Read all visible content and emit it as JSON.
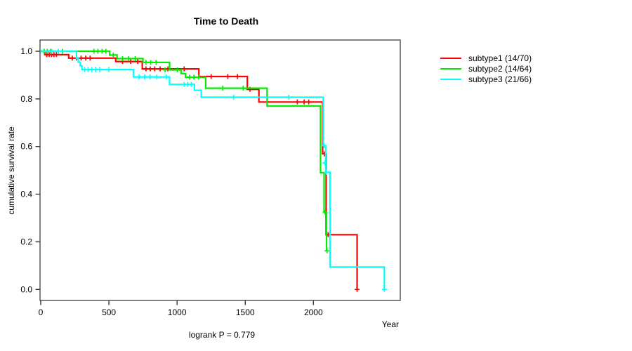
{
  "title": "Time to Death",
  "y_axis_label": "cumulative survival rate",
  "x_axis_label": "Year",
  "footer_label": "logrank P = 0.779",
  "chart_data": {
    "type": "line",
    "style": "kaplan-meier-step",
    "title": "Time to Death",
    "xlabel": "Year",
    "ylabel": "cumulative survival rate",
    "annotation": "logrank P = 0.779",
    "xlim": [
      0,
      2637
    ],
    "ylim": [
      0.0,
      1.0
    ],
    "x_ticks": [
      0,
      500,
      1000,
      1500,
      2000
    ],
    "x_tick_labels": [
      "0",
      "500",
      "1000",
      "1500",
      "2000"
    ],
    "y_ticks": [
      0.0,
      0.2,
      0.4,
      0.6,
      0.8,
      1.0
    ],
    "y_tick_labels": [
      "0.0",
      "0.2",
      "0.4",
      "0.6",
      "0.8",
      "1.0"
    ],
    "grid": false,
    "legend_position": "right-outside",
    "series": [
      {
        "id": "subtype1",
        "label": "subtype1 (14/70)",
        "color": "#ff0000",
        "points": [
          [
            0,
            1.0
          ],
          [
            30,
            0.986
          ],
          [
            205,
            0.971
          ],
          [
            550,
            0.957
          ],
          [
            745,
            0.926
          ],
          [
            1160,
            0.894
          ],
          [
            1515,
            0.84
          ],
          [
            1600,
            0.787
          ],
          [
            2068,
            0.569
          ],
          [
            2093,
            0.23
          ],
          [
            2320,
            0.0
          ]
        ],
        "censors": [
          [
            45,
            0.986
          ],
          [
            62,
            0.986
          ],
          [
            80,
            0.986
          ],
          [
            97,
            0.986
          ],
          [
            115,
            0.986
          ],
          [
            232,
            0.971
          ],
          [
            263,
            0.971
          ],
          [
            296,
            0.971
          ],
          [
            330,
            0.971
          ],
          [
            362,
            0.971
          ],
          [
            600,
            0.957
          ],
          [
            660,
            0.957
          ],
          [
            712,
            0.957
          ],
          [
            772,
            0.926
          ],
          [
            803,
            0.926
          ],
          [
            836,
            0.926
          ],
          [
            876,
            0.926
          ],
          [
            932,
            0.926
          ],
          [
            1052,
            0.926
          ],
          [
            1250,
            0.894
          ],
          [
            1372,
            0.894
          ],
          [
            1443,
            0.894
          ],
          [
            1535,
            0.84
          ],
          [
            1882,
            0.787
          ],
          [
            1932,
            0.787
          ],
          [
            1966,
            0.787
          ],
          [
            2080,
            0.569
          ],
          [
            2108,
            0.23
          ],
          [
            2320,
            0.0
          ]
        ]
      },
      {
        "id": "subtype2",
        "label": "subtype2 (14/64)",
        "color": "#00ee00",
        "points": [
          [
            0,
            1.0
          ],
          [
            505,
            0.984
          ],
          [
            560,
            0.969
          ],
          [
            750,
            0.953
          ],
          [
            945,
            0.922
          ],
          [
            1030,
            0.906
          ],
          [
            1062,
            0.891
          ],
          [
            1210,
            0.845
          ],
          [
            1660,
            0.77
          ],
          [
            2052,
            0.49
          ],
          [
            2078,
            0.324
          ],
          [
            2096,
            0.162
          ]
        ],
        "censors": [
          [
            25,
            1.0
          ],
          [
            48,
            1.0
          ],
          [
            72,
            1.0
          ],
          [
            160,
            1.0
          ],
          [
            390,
            1.0
          ],
          [
            420,
            1.0
          ],
          [
            450,
            1.0
          ],
          [
            478,
            1.0
          ],
          [
            532,
            0.984
          ],
          [
            600,
            0.969
          ],
          [
            645,
            0.969
          ],
          [
            693,
            0.969
          ],
          [
            772,
            0.953
          ],
          [
            806,
            0.953
          ],
          [
            846,
            0.953
          ],
          [
            912,
            0.922
          ],
          [
            1002,
            0.922
          ],
          [
            1092,
            0.891
          ],
          [
            1124,
            0.891
          ],
          [
            1158,
            0.891
          ],
          [
            1335,
            0.845
          ],
          [
            1485,
            0.845
          ],
          [
            2086,
            0.324
          ],
          [
            2100,
            0.162
          ]
        ]
      },
      {
        "id": "subtype3",
        "label": "subtype3 (21/66)",
        "color": "#00ffff",
        "points": [
          [
            0,
            1.0
          ],
          [
            262,
            0.97
          ],
          [
            276,
            0.954
          ],
          [
            290,
            0.939
          ],
          [
            303,
            0.923
          ],
          [
            680,
            0.892
          ],
          [
            945,
            0.861
          ],
          [
            1128,
            0.836
          ],
          [
            1178,
            0.807
          ],
          [
            2072,
            0.604
          ],
          [
            2090,
            0.492
          ],
          [
            2122,
            0.094
          ],
          [
            2520,
            0.0
          ]
        ],
        "censors": [
          [
            80,
            1.0
          ],
          [
            128,
            1.0
          ],
          [
            322,
            0.923
          ],
          [
            348,
            0.923
          ],
          [
            374,
            0.923
          ],
          [
            402,
            0.923
          ],
          [
            432,
            0.923
          ],
          [
            500,
            0.923
          ],
          [
            722,
            0.892
          ],
          [
            762,
            0.892
          ],
          [
            802,
            0.892
          ],
          [
            852,
            0.892
          ],
          [
            922,
            0.892
          ],
          [
            1052,
            0.861
          ],
          [
            1078,
            0.861
          ],
          [
            1104,
            0.861
          ],
          [
            1415,
            0.807
          ],
          [
            1820,
            0.807
          ],
          [
            2078,
            0.604
          ],
          [
            2084,
            0.531
          ],
          [
            2094,
            0.492
          ],
          [
            2520,
            0.0
          ]
        ]
      }
    ]
  }
}
